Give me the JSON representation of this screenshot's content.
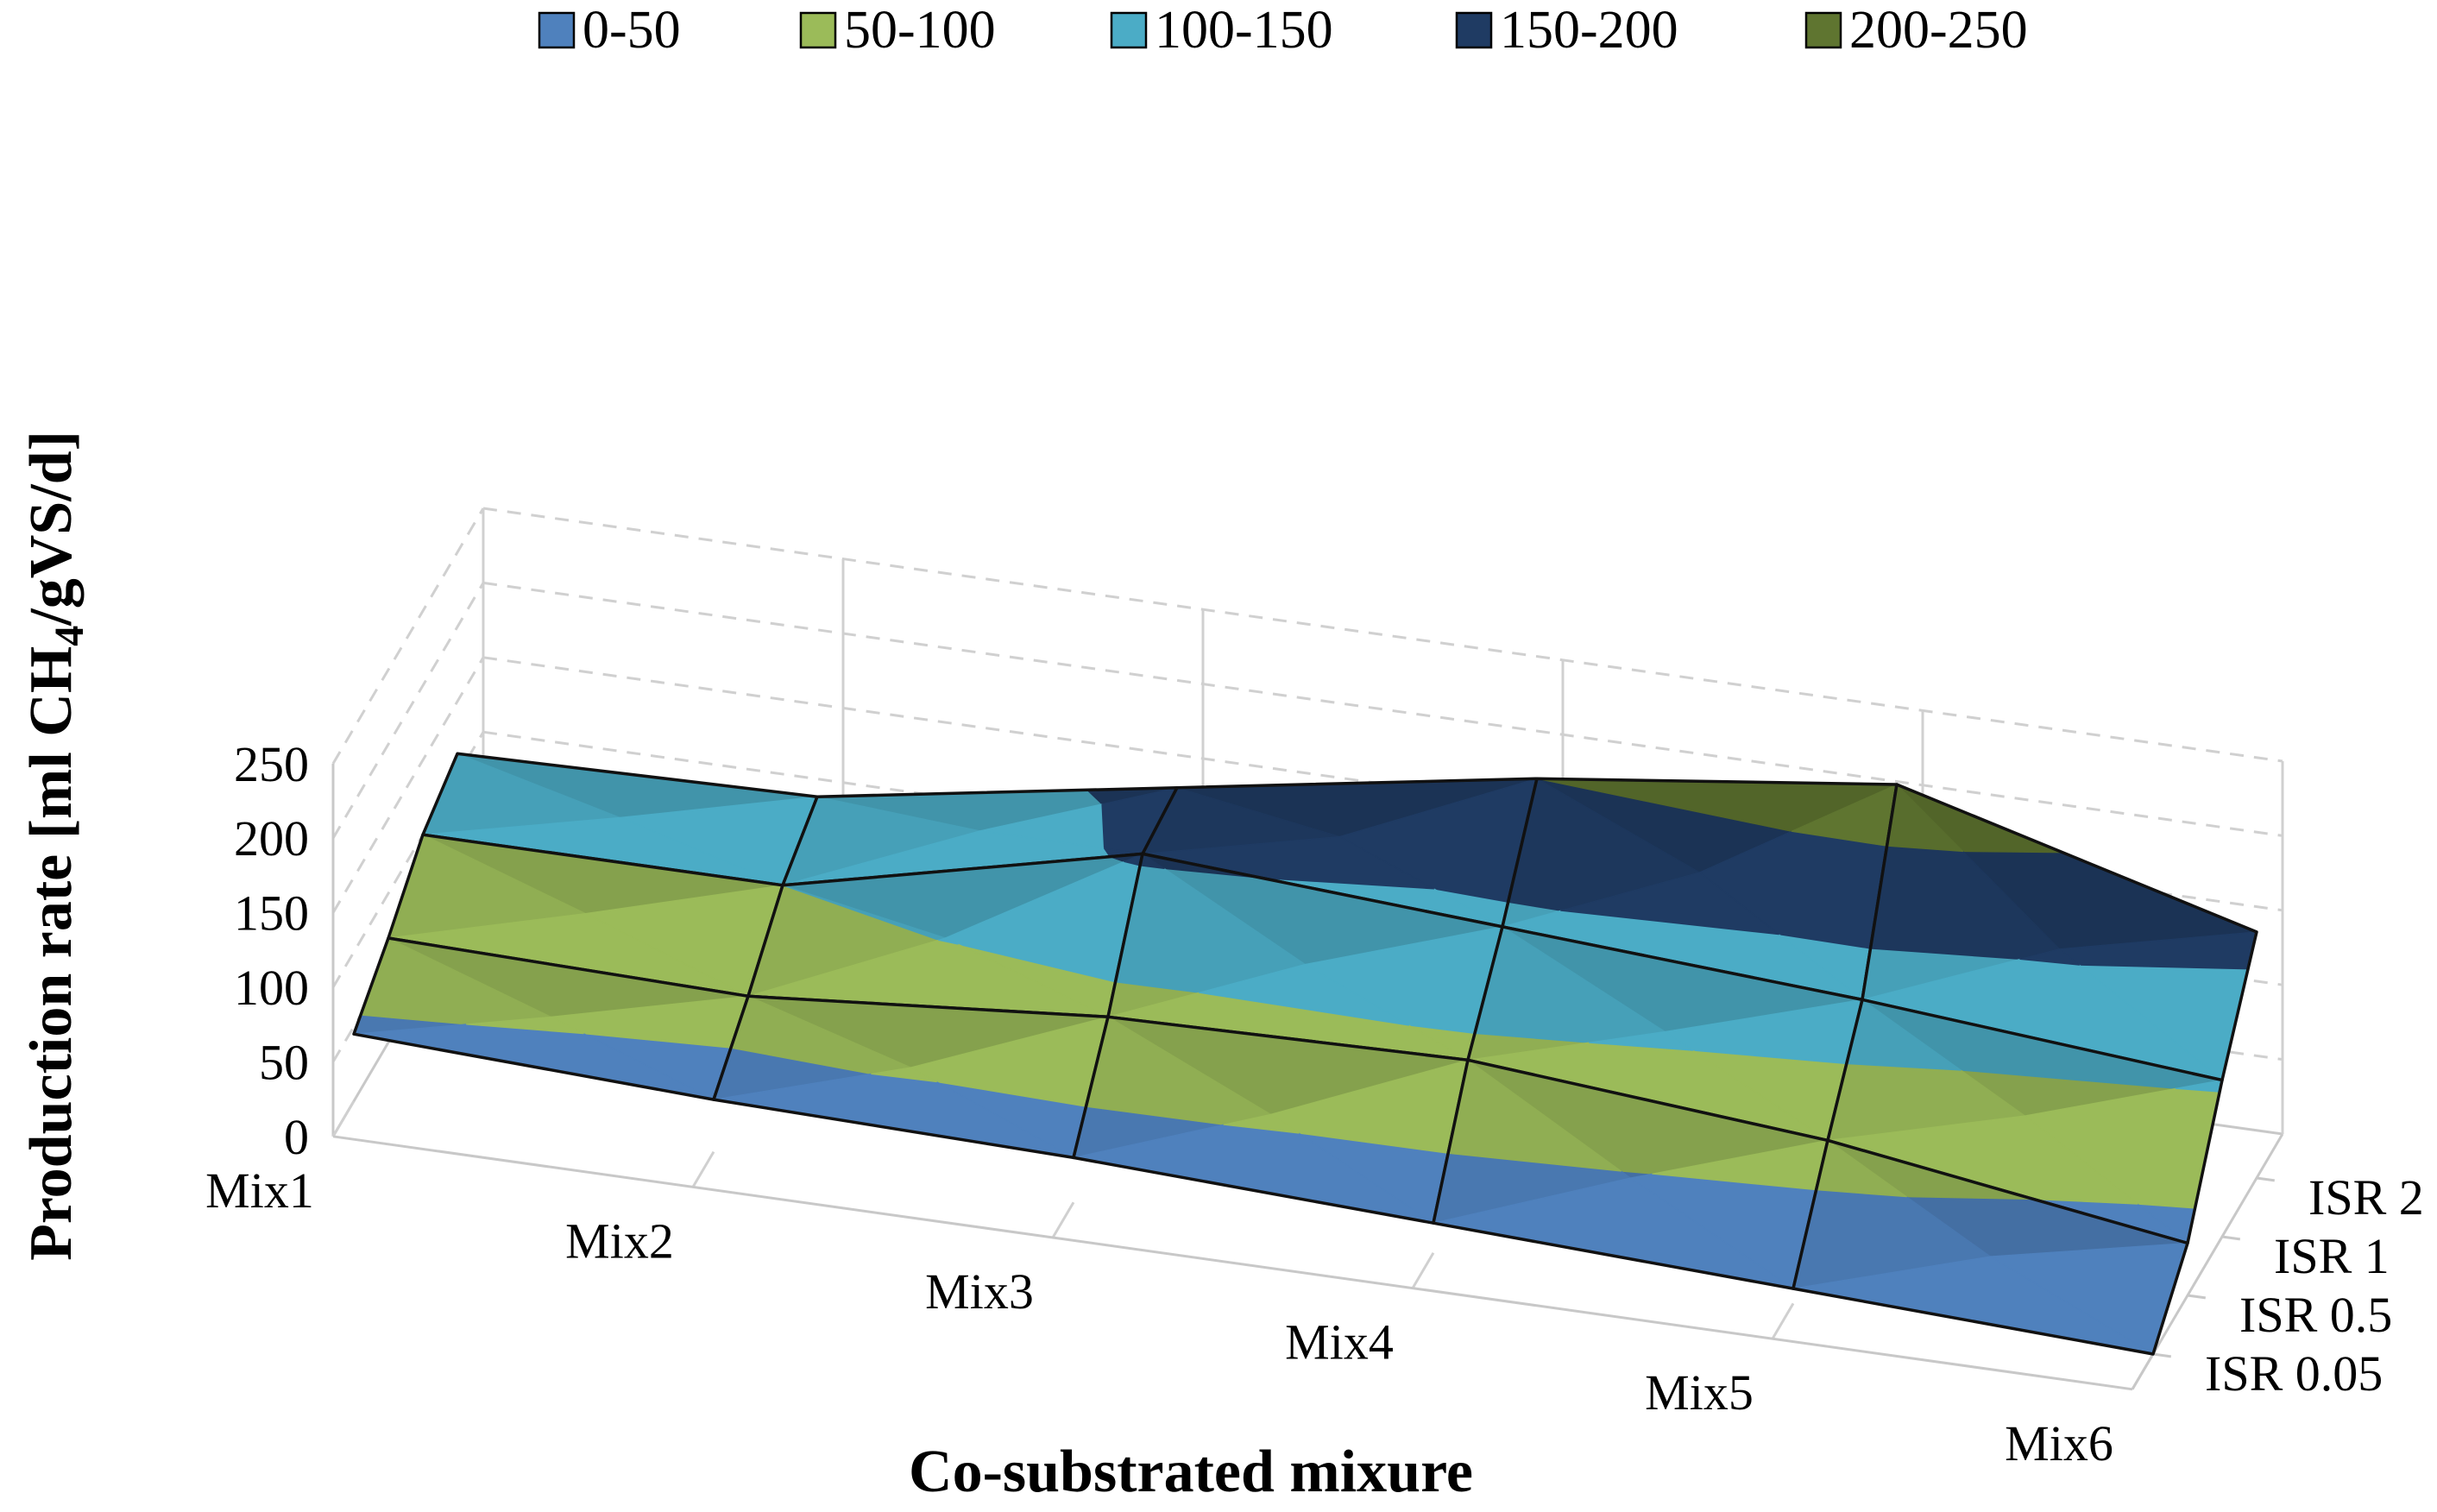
{
  "chart_data": {
    "type": "surface",
    "title": "",
    "xlabel": "Co-substrated mixure",
    "ylabel": "Production rate [ml CH",
    "ylabel_sub": "4",
    "ylabel_tail": "/gVS/d]",
    "zlim": [
      0,
      250
    ],
    "z_ticks": [
      "0",
      "50",
      "100",
      "150",
      "200",
      "250"
    ],
    "categories": [
      "Mix1",
      "Mix2",
      "Mix3",
      "Mix4",
      "Mix5",
      "Mix6"
    ],
    "series_names": [
      "ISR 0.05",
      "ISR 0.5",
      "ISR 1",
      "ISR 2"
    ],
    "values": [
      [
        45,
        70,
        100,
        115
      ],
      [
        35,
        65,
        100,
        120
      ],
      [
        30,
        85,
        155,
        160
      ],
      [
        20,
        90,
        140,
        200
      ],
      [
        10,
        70,
        125,
        230
      ],
      [
        0,
        35,
        105,
        165
      ]
    ],
    "legend": [
      {
        "label": "0-50",
        "color": "#4f81bd"
      },
      {
        "label": "50-100",
        "color": "#9bbb59"
      },
      {
        "label": "100-150",
        "color": "#4bacc6"
      },
      {
        "label": "150-200",
        "color": "#1f3b63"
      },
      {
        "label": "200-250",
        "color": "#5f7530"
      }
    ]
  }
}
